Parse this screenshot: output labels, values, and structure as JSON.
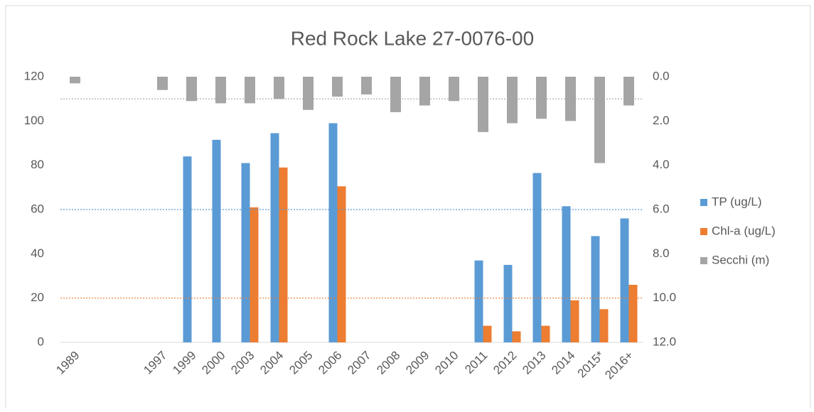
{
  "chart_data": {
    "type": "bar",
    "title": "Red Rock Lake 27-0076-00",
    "categories": [
      "1989",
      null,
      null,
      "1997",
      "1999",
      "2000",
      "2003",
      "2004",
      "2005",
      "2006",
      "2007",
      "2008",
      "2009",
      "2010",
      "2011",
      "2012",
      "2013",
      "2014",
      "2015*",
      "2016+"
    ],
    "series": [
      {
        "name": "TP (ug/L)",
        "color": "#5b9bd5",
        "values": [
          null,
          null,
          null,
          null,
          84,
          91.5,
          81,
          94.5,
          null,
          99,
          null,
          null,
          null,
          null,
          37,
          35,
          76.5,
          61.5,
          48,
          56
        ]
      },
      {
        "name": "Chl-a (ug/L)",
        "color": "#ed7d31",
        "values": [
          null,
          null,
          null,
          null,
          null,
          null,
          61,
          79,
          null,
          70.5,
          null,
          null,
          null,
          null,
          7.5,
          5,
          7.5,
          19,
          15,
          26
        ]
      },
      {
        "name": "Secchi (m)",
        "color": "#a5a5a5",
        "axis": "y2",
        "values": [
          0.3,
          null,
          null,
          0.6,
          1.1,
          1.2,
          1.2,
          1.0,
          1.5,
          0.9,
          0.8,
          1.6,
          1.3,
          1.1,
          2.5,
          2.1,
          1.9,
          2.0,
          3.9,
          1.3
        ]
      }
    ],
    "ylim": [
      0,
      120
    ],
    "yticks": [
      0,
      20,
      40,
      60,
      80,
      100,
      120
    ],
    "y2lim": [
      12,
      0
    ],
    "y2ticks": [
      {
        "value": 0,
        "label": "0.0"
      },
      {
        "value": 2,
        "label": "2.0"
      },
      {
        "value": 4,
        "label": "4.0"
      },
      {
        "value": 6,
        "label": "6.0"
      },
      {
        "value": 8,
        "label": "8.0"
      },
      {
        "value": 10,
        "label": "10.0"
      },
      {
        "value": 12,
        "label": "12.0"
      }
    ],
    "reference_lines": [
      {
        "value": 60,
        "color": "#5b9bd5"
      },
      {
        "value": 20,
        "color": "#ed7d31"
      },
      {
        "value": 1.0,
        "color": "#a5a5a5",
        "axis": "y2"
      }
    ],
    "legend": "right"
  }
}
